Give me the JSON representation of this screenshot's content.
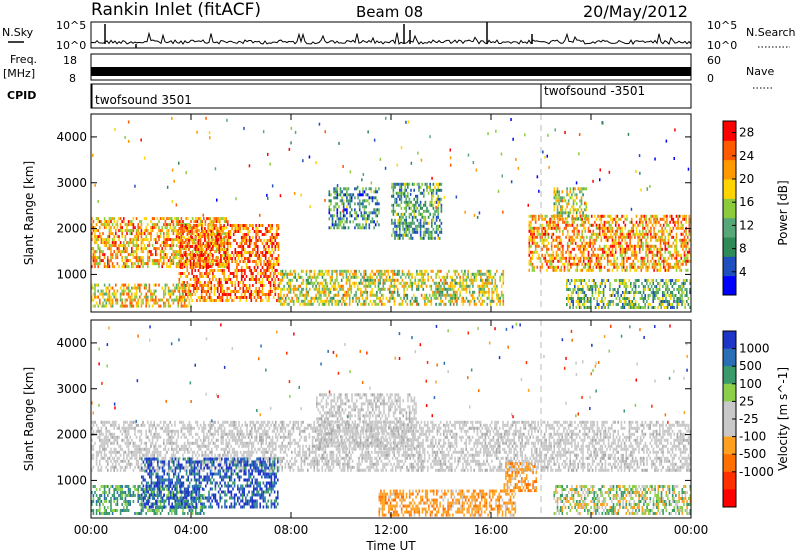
{
  "header": {
    "station": "Rankin Inlet (fitACF)",
    "beam": "Beam 08",
    "date": "20/May/2012"
  },
  "strips": {
    "nsky_label": "N.Sky",
    "nsky_ticks": [
      "10^5",
      "10^0"
    ],
    "nsearch_label": "N.Search",
    "nsearch_ticks": [
      "10^5",
      "10^0"
    ],
    "freq_label_1": "Freq.",
    "freq_label_2": "[MHz]",
    "freq_ticks": [
      "18",
      "8"
    ],
    "nave_label": "Nave",
    "nave_ticks": [
      "60",
      "0"
    ],
    "cpid_label": "CPID",
    "cpid_entries": [
      {
        "name": "twofsound 3501",
        "start_hour": 0
      },
      {
        "name": "twofsound -3501",
        "start_hour": 18
      }
    ]
  },
  "colors": {
    "power_scale": [
      "#0000ff",
      "#1f4fbf",
      "#2e8b57",
      "#56a878",
      "#8ccc3c",
      "#ffd400",
      "#ff9900",
      "#ff5a00",
      "#ff0000"
    ],
    "velocity_scale": [
      "#1f35c8",
      "#2a6fb5",
      "#3a9a6a",
      "#8cd04a",
      "#c8c8c8",
      "#c8c8c8",
      "#ffa020",
      "#ff7000",
      "#ff3000",
      "#ff0000"
    ]
  },
  "chart_data": [
    {
      "type": "heatmap",
      "name": "power",
      "xlabel": "Time UT",
      "ylabel": "Slant Range [km]",
      "x_ticks": [
        "00:00",
        "04:00",
        "08:00",
        "12:00",
        "16:00",
        "20:00",
        "00:00"
      ],
      "xlim_hours": [
        0,
        24
      ],
      "ylim": [
        180,
        4500
      ],
      "y_ticks": [
        1000,
        2000,
        3000,
        4000
      ],
      "colorbar": {
        "label": "Power [dB]",
        "ticks": [
          4,
          8,
          12,
          16,
          20,
          24,
          28
        ],
        "range": [
          0,
          30
        ]
      },
      "features": [
        {
          "t0": 0.0,
          "t1": 5.5,
          "r0": 1200,
          "r1": 2250,
          "level": 0.72
        },
        {
          "t0": 3.5,
          "t1": 7.5,
          "r0": 450,
          "r1": 2100,
          "level": 0.85
        },
        {
          "t0": 0.0,
          "t1": 4.0,
          "r0": 280,
          "r1": 800,
          "level": 0.65
        },
        {
          "t0": 9.5,
          "t1": 11.5,
          "r0": 2000,
          "r1": 2900,
          "level": 0.3
        },
        {
          "t0": 7.5,
          "t1": 16.5,
          "r0": 350,
          "r1": 1100,
          "level": 0.55
        },
        {
          "t0": 12.0,
          "t1": 14.0,
          "r0": 1800,
          "r1": 3000,
          "level": 0.35
        },
        {
          "t0": 17.5,
          "t1": 24.0,
          "r0": 1100,
          "r1": 2300,
          "level": 0.75
        },
        {
          "t0": 18.5,
          "t1": 19.8,
          "r0": 2200,
          "r1": 2900,
          "level": 0.55
        },
        {
          "t0": 19.0,
          "t1": 24.0,
          "r0": 300,
          "r1": 900,
          "level": 0.4
        }
      ]
    },
    {
      "type": "heatmap",
      "name": "velocity",
      "xlabel": "Time UT",
      "ylabel": "Slant Range [km]",
      "x_ticks": [
        "00:00",
        "04:00",
        "08:00",
        "12:00",
        "16:00",
        "20:00",
        "00:00"
      ],
      "xlim_hours": [
        0,
        24
      ],
      "ylim": [
        180,
        4500
      ],
      "y_ticks": [
        1000,
        2000,
        3000,
        4000
      ],
      "colorbar": {
        "label": "Velocity [m s^-1]",
        "ticks": [
          "1000",
          "500",
          "100",
          "25",
          "-25",
          "-100",
          "-500",
          "-1000"
        ]
      },
      "features": [
        {
          "t0": 0.0,
          "t1": 24.0,
          "r0": 1200,
          "r1": 2300,
          "kind": "ground"
        },
        {
          "t0": 0.0,
          "t1": 4.5,
          "r0": 300,
          "r1": 900,
          "kind": "green"
        },
        {
          "t0": 2.0,
          "t1": 7.5,
          "r0": 400,
          "r1": 1500,
          "kind": "blue"
        },
        {
          "t0": 9.0,
          "t1": 13.0,
          "r0": 1700,
          "r1": 2900,
          "kind": "ground"
        },
        {
          "t0": 11.5,
          "t1": 17.0,
          "r0": 250,
          "r1": 800,
          "kind": "orange"
        },
        {
          "t0": 16.5,
          "t1": 17.8,
          "r0": 800,
          "r1": 1400,
          "kind": "orange"
        },
        {
          "t0": 18.5,
          "t1": 24.0,
          "r0": 300,
          "r1": 900,
          "kind": "mixed"
        }
      ]
    }
  ]
}
